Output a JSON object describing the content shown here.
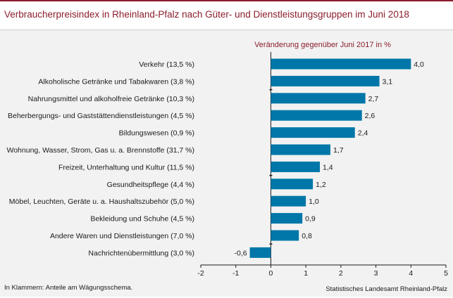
{
  "title": "Verbraucherpreisindex in Rheinland-Pfalz nach Güter- und Dienstleistungsgruppen im Juni 2018",
  "footnote": "In Klammern: Anteile am Wägungsschema.",
  "source": "Statistisches Landesamt Rheinland-Pfalz",
  "colors": {
    "bar": "#0077a8",
    "title": "#8b1e2d",
    "background": "#f2f2f2"
  },
  "chart_data": {
    "type": "bar",
    "orientation": "horizontal",
    "title": "Verbraucherpreisindex in Rheinland-Pfalz nach Güter- und Dienstleistungsgruppen im Juni 2018",
    "subtitle": "Veränderung gegenüber Juni 2017 in %",
    "categories": [
      "Verkehr (13,5 %)",
      "Alkoholische Getränke und Tabakwaren (3,8 %)",
      "Nahrungsmittel und alkoholfreie Getränke (10,3 %)",
      "Beherbergungs- und Gaststättendienstleistungen (4,5 %)",
      "Bildungswesen (0,9 %)",
      "Wohnung, Wasser, Strom, Gas u. a. Brennstoffe (31,7 %)",
      "Freizeit, Unterhaltung und Kultur (11,5 %)",
      "Gesundheitspflege (4,4 %)",
      "Möbel, Leuchten, Geräte u. a. Haushaltszubehör (5,0 %)",
      "Bekleidung und Schuhe (4,5 %)",
      "Andere Waren und Dienstleistungen (7,0 %)",
      "Nachrichtenübermittlung (3,0 %)"
    ],
    "values": [
      4.0,
      3.1,
      2.7,
      2.6,
      2.4,
      1.7,
      1.4,
      1.2,
      1.0,
      0.9,
      0.8,
      -0.6
    ],
    "value_labels": [
      "4,0",
      "3,1",
      "2,7",
      "2,6",
      "2,4",
      "1,7",
      "1,4",
      "1,2",
      "1,0",
      "0,9",
      "0,8",
      "-0,6"
    ],
    "xlim": [
      -2,
      5
    ],
    "xticks": [
      -2,
      -1,
      0,
      1,
      2,
      3,
      4,
      5
    ],
    "xtick_labels": [
      "-2",
      "-1",
      "0",
      "1",
      "2",
      "3",
      "4",
      "5"
    ],
    "xlabel": "",
    "ylabel": "",
    "grid": false,
    "legend": "none"
  }
}
